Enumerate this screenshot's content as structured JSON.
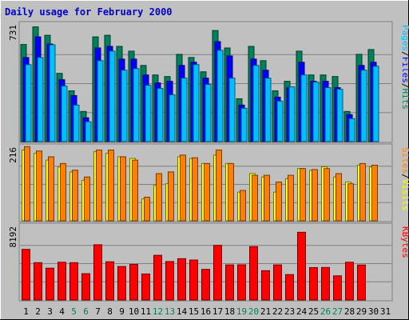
{
  "colors": {
    "background": "#c0c0c0",
    "plot_bg": "#c0c0c0",
    "hits": "#00805c",
    "files": "#0000ff",
    "pages": "#00c0ff",
    "visits": "#ffff00",
    "sites": "#ff8000",
    "kbytes": "#ff0000",
    "title": "#0000cc",
    "weekend_day": "#00805c"
  },
  "chart_data": {
    "type": "bar",
    "title": "Daily usage for February 2000",
    "categories": [
      "1",
      "2",
      "3",
      "4",
      "5",
      "6",
      "7",
      "8",
      "9",
      "10",
      "11",
      "12",
      "13",
      "14",
      "15",
      "16",
      "17",
      "18",
      "19",
      "20",
      "21",
      "22",
      "23",
      "24",
      "25",
      "26",
      "27",
      "28",
      "29",
      "30",
      "31"
    ],
    "weekend_days": [
      "5",
      "6",
      "12",
      "13",
      "19",
      "20",
      "26",
      "27"
    ],
    "panels": [
      {
        "ymax_label": "731",
        "ymax": 731,
        "right_label": [
          "Pages",
          "/",
          "Files",
          "/",
          "Hits"
        ],
        "right_label_colors": [
          "pages",
          "black",
          "files",
          "black",
          "hits"
        ],
        "series": [
          {
            "name": "Hits",
            "color": "hits",
            "values": [
              612,
              723,
              670,
              430,
              320,
              190,
              660,
              670,
              600,
              570,
              480,
              420,
              410,
              550,
              530,
              440,
              700,
              590,
              270,
              600,
              510,
              320,
              380,
              570,
              420,
              420,
              410,
              190,
              550,
              580,
              null
            ]
          },
          {
            "name": "Files",
            "color": "files",
            "values": [
              530,
              660,
              615,
              390,
              290,
              150,
              590,
              600,
              520,
              520,
              420,
              370,
              380,
              480,
              500,
              400,
              630,
              540,
              230,
              520,
              450,
              280,
              340,
              500,
              380,
              380,
              340,
              170,
              480,
              500,
              null
            ]
          },
          {
            "name": "Pages",
            "color": "pages",
            "values": [
              485,
              530,
              610,
              350,
              230,
              125,
              510,
              570,
              450,
              460,
              355,
              335,
              295,
              400,
              485,
              360,
              575,
              400,
              210,
              480,
              400,
              255,
              345,
              420,
              375,
              340,
              330,
              145,
              450,
              475,
              null
            ]
          }
        ]
      },
      {
        "ymax_label": "216",
        "ymax": 216,
        "right_label": [
          "Sites",
          "/",
          "Visits"
        ],
        "right_label_colors": [
          "sites",
          "black",
          "visits"
        ],
        "series": [
          {
            "name": "Visits",
            "color": "visits",
            "values": [
              210,
              200,
              180,
              160,
              145,
              120,
              205,
              200,
              190,
              185,
              65,
              105,
              110,
              190,
              185,
              170,
              195,
              170,
              85,
              140,
              130,
              85,
              125,
              155,
              150,
              160,
              130,
              115,
              165,
              160,
              null
            ]
          },
          {
            "name": "Sites",
            "color": "sites",
            "values": [
              220,
              207,
              190,
              170,
              150,
              130,
              210,
              210,
              190,
              180,
              70,
              140,
              145,
              195,
              187,
              170,
              210,
              170,
              90,
              135,
              135,
              115,
              135,
              155,
              152,
              155,
              140,
              110,
              170,
              165,
              null
            ]
          }
        ]
      },
      {
        "ymax_label": "8192",
        "ymax": 8192,
        "right_label": [
          "KBytes"
        ],
        "right_label_colors": [
          "kbytes"
        ],
        "series": [
          {
            "name": "KBytes",
            "color": "kbytes",
            "values": [
              5700,
              4200,
              3580,
              4250,
              4200,
              2960,
              6220,
              4300,
              3770,
              4000,
              2930,
              5030,
              4330,
              4650,
              4500,
              3450,
              6150,
              3950,
              3960,
              6010,
              3300,
              3950,
              2860,
              7620,
              3650,
              3660,
              2720,
              4250,
              3940,
              null,
              null
            ]
          }
        ]
      }
    ]
  }
}
